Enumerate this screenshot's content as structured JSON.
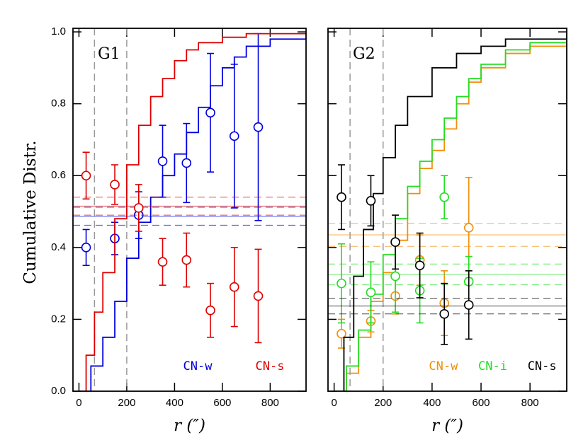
{
  "chart_data": [
    {
      "type": "line",
      "label": "G1",
      "ylabel": "Cumulative Distr.",
      "xlabel": "r (″)",
      "xlim": [
        -25,
        950
      ],
      "ylim": [
        0,
        1.01
      ],
      "xticks": [
        0,
        200,
        400,
        600,
        800
      ],
      "yticks": [
        {
          "value": 0,
          "label": "0.0"
        },
        {
          "value": 0.2,
          "label": "0.2"
        },
        {
          "value": 0.4,
          "label": "0.4"
        },
        {
          "value": 0.6,
          "label": "0.6"
        },
        {
          "value": 0.8,
          "label": "0.8"
        },
        {
          "value": 1.0,
          "label": "1.0"
        }
      ],
      "vlines": [
        65,
        200
      ],
      "vline_color": "#999999",
      "series": [
        {
          "name": "CN-w",
          "color": "#0000dd",
          "x": [
            0,
            50,
            100,
            150,
            200,
            250,
            300,
            350,
            400,
            450,
            500,
            550,
            600,
            650,
            700,
            800,
            950
          ],
          "values": [
            0,
            0.07,
            0.15,
            0.25,
            0.37,
            0.47,
            0.54,
            0.6,
            0.66,
            0.72,
            0.79,
            0.85,
            0.9,
            0.93,
            0.96,
            0.98,
            0.995
          ],
          "points": {
            "x": [
              30,
              150,
              250,
              350,
              450,
              550,
              650,
              750
            ],
            "values": [
              0.4,
              0.425,
              0.49,
              0.64,
              0.635,
              0.775,
              0.71,
              0.735
            ],
            "errors": [
              0.05,
              0.045,
              0.065,
              0.1,
              0.11,
              0.165,
              0.2,
              0.26
            ]
          },
          "reference": {
            "value": 0.487,
            "error": 0.025
          }
        },
        {
          "name": "CN-s",
          "color": "#dd0000",
          "x": [
            0,
            30,
            65,
            100,
            150,
            200,
            250,
            300,
            350,
            400,
            450,
            500,
            600,
            700,
            950
          ],
          "values": [
            0,
            0.1,
            0.22,
            0.33,
            0.48,
            0.63,
            0.74,
            0.82,
            0.87,
            0.92,
            0.95,
            0.97,
            0.985,
            0.995,
            1.0
          ],
          "points": {
            "x": [
              30,
              150,
              250,
              350,
              450,
              550,
              650,
              750
            ],
            "values": [
              0.6,
              0.575,
              0.51,
              0.36,
              0.365,
              0.225,
              0.29,
              0.265
            ],
            "errors": [
              0.065,
              0.055,
              0.065,
              0.065,
              0.075,
              0.075,
              0.11,
              0.13
            ]
          },
          "reference": {
            "value": 0.515,
            "error": 0.025
          }
        }
      ]
    },
    {
      "type": "line",
      "label": "G2",
      "xlabel": "r (″)",
      "xlim": [
        -25,
        950
      ],
      "ylim": [
        0,
        1.01
      ],
      "xticks": [
        0,
        200,
        400,
        600,
        800
      ],
      "yticks": [
        0,
        0.2,
        0.4,
        0.6,
        0.8,
        1.0
      ],
      "vlines": [
        65,
        200
      ],
      "vline_color": "#999999",
      "series": [
        {
          "name": "CN-w",
          "color": "#f0900a",
          "x": [
            0,
            50,
            100,
            150,
            200,
            250,
            300,
            350,
            400,
            450,
            500,
            550,
            600,
            700,
            800,
            950
          ],
          "values": [
            0,
            0.05,
            0.15,
            0.25,
            0.33,
            0.42,
            0.55,
            0.62,
            0.67,
            0.73,
            0.8,
            0.86,
            0.9,
            0.94,
            0.96,
            0.985
          ],
          "points": {
            "x": [
              30,
              150,
              250,
              350,
              450,
              550
            ],
            "values": [
              0.16,
              0.195,
              0.265,
              0.365,
              0.245,
              0.455
            ],
            "errors": [
              0.04,
              0.03,
              0.05,
              0.07,
              0.09,
              0.14
            ]
          },
          "reference": {
            "value": 0.435,
            "error": 0.032
          }
        },
        {
          "name": "CN-i",
          "color": "#22dd22",
          "x": [
            0,
            50,
            100,
            150,
            200,
            250,
            300,
            350,
            400,
            450,
            500,
            550,
            600,
            700,
            800,
            950
          ],
          "values": [
            0,
            0.07,
            0.17,
            0.27,
            0.38,
            0.48,
            0.57,
            0.64,
            0.7,
            0.76,
            0.82,
            0.87,
            0.91,
            0.95,
            0.97,
            0.995
          ],
          "points": {
            "x": [
              30,
              150,
              250,
              350,
              450,
              550
            ],
            "values": [
              0.3,
              0.275,
              0.32,
              0.28,
              0.54,
              0.305
            ],
            "errors": [
              0.11,
              0.085,
              0.1,
              0.09,
              0.06,
              0.07
            ]
          },
          "reference": {
            "value": 0.325,
            "error": 0.029
          }
        },
        {
          "name": "CN-s",
          "color": "#000000",
          "x": [
            0,
            40,
            80,
            120,
            160,
            200,
            250,
            300,
            400,
            500,
            600,
            700,
            950
          ],
          "values": [
            0,
            0.15,
            0.32,
            0.45,
            0.55,
            0.65,
            0.74,
            0.82,
            0.9,
            0.94,
            0.96,
            0.98,
            1.0
          ],
          "points": {
            "x": [
              30,
              150,
              250,
              350,
              450,
              550
            ],
            "values": [
              0.54,
              0.53,
              0.415,
              0.35,
              0.215,
              0.24
            ],
            "errors": [
              0.09,
              0.07,
              0.075,
              0.09,
              0.085,
              0.095
            ]
          },
          "reference": {
            "value": 0.237,
            "error": 0.022
          }
        }
      ]
    }
  ]
}
